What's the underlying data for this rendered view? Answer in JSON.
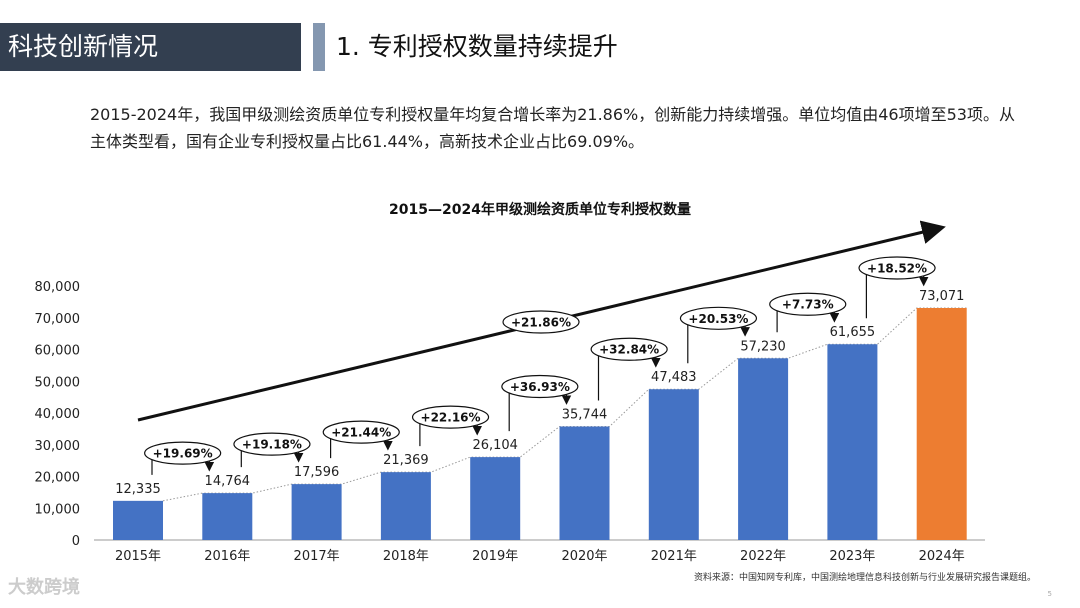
{
  "header": {
    "section": "科技创新情况",
    "title": "1. 专利授权数量持续提升"
  },
  "description": "2015-2024年，我国甲级测绘资质单位专利授权量年均复合增长率为21.86%，创新能力持续增强。单位均值由46项增至53项。从主体类型看，国有企业专利授权量占比61.44%，高新技术企业占比69.09%。",
  "chart_data": {
    "type": "bar",
    "title": "2015—2024年甲级测绘资质单位专利授权数量",
    "categories": [
      "2015年",
      "2016年",
      "2017年",
      "2018年",
      "2019年",
      "2020年",
      "2021年",
      "2022年",
      "2023年",
      "2024年"
    ],
    "values": [
      12335,
      14764,
      17596,
      21369,
      26104,
      35744,
      47483,
      57230,
      61655,
      73071
    ],
    "value_labels": [
      "12,335",
      "14,764",
      "17,596",
      "21,369",
      "26,104",
      "35,744",
      "47,483",
      "57,230",
      "61,655",
      "73,071"
    ],
    "growth_labels": [
      "+19.69%",
      "+19.18%",
      "+21.44%",
      "+22.16%",
      "+36.93%",
      "+32.84%",
      "+20.53%",
      "+7.73%",
      "+18.52%"
    ],
    "cagr_label": "+21.86%",
    "ylim": [
      0,
      80000
    ],
    "yticks": [
      "0",
      "10,000",
      "20,000",
      "30,000",
      "40,000",
      "50,000",
      "60,000",
      "70,000",
      "80,000"
    ],
    "colors": {
      "bar": "#4472c4",
      "highlight": "#ed7d31"
    },
    "legend": "none",
    "grid": false
  },
  "footer": {
    "source": "资料来源：中国知网专利库，中国测绘地理信息科技创新与行业发展研究报告课题组。",
    "logo": "大数跨境",
    "page": "5"
  }
}
